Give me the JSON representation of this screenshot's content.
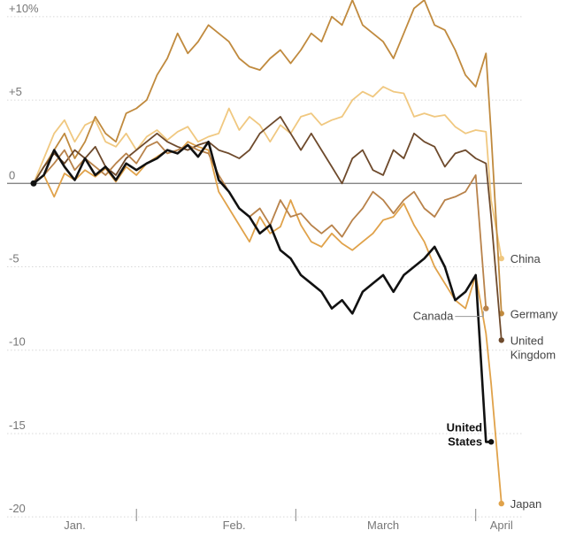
{
  "chart_data": {
    "type": "line",
    "title": "",
    "xlabel": "",
    "ylabel": "",
    "ylim": [
      -21,
      11
    ],
    "y_ticks": [
      {
        "value": 10,
        "label": "+10%"
      },
      {
        "value": 5,
        "label": "+5"
      },
      {
        "value": 0,
        "label": "0"
      },
      {
        "value": -5,
        "label": "-5"
      },
      {
        "value": -10,
        "label": "-10"
      },
      {
        "value": -15,
        "label": "-15"
      },
      {
        "value": -20,
        "label": "-20"
      }
    ],
    "x_labels": [
      {
        "label": "Jan.",
        "x": 8
      },
      {
        "label": "Feb.",
        "x": 39
      },
      {
        "label": "March",
        "x": 68
      },
      {
        "label": "April",
        "x": 91
      }
    ],
    "x_separators": [
      20,
      51,
      86
    ],
    "x_range": [
      0,
      95
    ],
    "grid": true,
    "legend": "labels at line ends",
    "series": [
      {
        "name": "Japan",
        "color": "#e0a24a",
        "emphasis": false,
        "x": [
          0,
          2,
          4,
          6,
          8,
          10,
          12,
          14,
          16,
          18,
          20,
          22,
          24,
          26,
          28,
          30,
          32,
          34,
          36,
          38,
          40,
          42,
          44,
          46,
          48,
          50,
          52,
          54,
          56,
          58,
          60,
          62,
          64,
          66,
          68,
          70,
          72,
          74,
          76,
          78,
          80,
          82,
          84,
          86,
          88,
          89,
          91
        ],
        "y": [
          0,
          0.5,
          -0.8,
          0.6,
          0.2,
          0.8,
          0.4,
          0.9,
          0.1,
          1.0,
          0.5,
          1.2,
          1.6,
          2.0,
          1.8,
          2.5,
          2.2,
          2.0,
          -0.5,
          -1.5,
          -2.5,
          -3.5,
          -2.0,
          -3.0,
          -2.6,
          -1.0,
          -2.5,
          -3.5,
          -3.8,
          -3.0,
          -3.6,
          -4.0,
          -3.5,
          -3.0,
          -2.2,
          -2.0,
          -1.2,
          -2.5,
          -3.5,
          -5.0,
          -6.0,
          -7.0,
          -7.5,
          -5.5,
          -9.0,
          -12.0,
          -19.2
        ]
      },
      {
        "name": "China",
        "color": "#f0c880",
        "emphasis": false,
        "x": [
          0,
          2,
          4,
          6,
          8,
          10,
          12,
          14,
          16,
          18,
          20,
          22,
          24,
          26,
          28,
          30,
          32,
          34,
          36,
          38,
          40,
          42,
          44,
          46,
          48,
          50,
          52,
          54,
          56,
          58,
          60,
          62,
          64,
          66,
          68,
          70,
          72,
          74,
          76,
          78,
          80,
          82,
          84,
          86,
          88,
          89,
          91
        ],
        "y": [
          0,
          1.5,
          3.0,
          3.8,
          2.5,
          3.5,
          3.8,
          2.5,
          2.2,
          3.0,
          2.0,
          2.8,
          3.2,
          2.6,
          3.1,
          3.4,
          2.5,
          2.8,
          3.0,
          4.5,
          3.2,
          4.0,
          3.5,
          2.5,
          3.5,
          3.0,
          4.0,
          4.2,
          3.5,
          3.8,
          4.0,
          5.0,
          5.5,
          5.2,
          5.8,
          5.5,
          5.4,
          4.0,
          4.2,
          4.0,
          4.1,
          3.4,
          3.0,
          3.2,
          3.1,
          -1.0,
          -4.5
        ]
      },
      {
        "name": "Germany",
        "color": "#c08a3e",
        "emphasis": false,
        "x": [
          0,
          2,
          4,
          6,
          8,
          10,
          12,
          14,
          16,
          18,
          20,
          22,
          24,
          26,
          28,
          30,
          32,
          34,
          36,
          38,
          40,
          42,
          44,
          46,
          48,
          50,
          52,
          54,
          56,
          58,
          60,
          62,
          64,
          66,
          68,
          70,
          72,
          74,
          76,
          78,
          80,
          82,
          84,
          86,
          88,
          89,
          91
        ],
        "y": [
          0,
          1.0,
          2.0,
          3.0,
          1.5,
          2.5,
          4.0,
          3.0,
          2.5,
          4.2,
          4.5,
          5.0,
          6.5,
          7.5,
          9.0,
          7.8,
          8.5,
          9.5,
          9.0,
          8.5,
          7.5,
          7.0,
          6.8,
          7.5,
          8.0,
          7.2,
          8.0,
          9.0,
          8.5,
          10.0,
          9.5,
          11.0,
          9.5,
          9.0,
          8.5,
          7.5,
          9.0,
          10.5,
          11.0,
          9.5,
          9.2,
          8.0,
          6.5,
          5.8,
          7.8,
          3.0,
          -7.8
        ]
      },
      {
        "name": "United Kingdom",
        "color": "#6e4a2c",
        "emphasis": false,
        "x": [
          0,
          2,
          4,
          6,
          8,
          10,
          12,
          14,
          16,
          18,
          20,
          22,
          24,
          26,
          28,
          30,
          32,
          34,
          36,
          38,
          40,
          42,
          44,
          46,
          48,
          50,
          52,
          54,
          56,
          58,
          60,
          62,
          64,
          66,
          68,
          70,
          72,
          74,
          76,
          78,
          80,
          82,
          84,
          86,
          88,
          89,
          91
        ],
        "y": [
          0,
          1.0,
          1.8,
          1.2,
          2.0,
          1.5,
          2.2,
          1.0,
          0.5,
          1.5,
          2.0,
          2.5,
          3.0,
          2.5,
          2.2,
          2.0,
          2.3,
          2.5,
          2.0,
          1.8,
          1.5,
          2.0,
          3.0,
          3.5,
          4.0,
          3.0,
          2.0,
          3.0,
          2.0,
          1.0,
          0.0,
          1.5,
          2.0,
          0.8,
          0.5,
          2.0,
          1.5,
          3.0,
          2.5,
          2.2,
          1.0,
          1.8,
          2.0,
          1.5,
          1.2,
          -2.0,
          -9.4
        ]
      },
      {
        "name": "Canada",
        "color": "#b8824a",
        "emphasis": false,
        "x": [
          0,
          2,
          4,
          6,
          8,
          10,
          12,
          14,
          16,
          18,
          20,
          22,
          24,
          26,
          28,
          30,
          32,
          34,
          36,
          38,
          40,
          42,
          44,
          46,
          48,
          50,
          52,
          54,
          56,
          58,
          60,
          62,
          64,
          66,
          68,
          70,
          72,
          74,
          76,
          78,
          80,
          82,
          84,
          86,
          88
        ],
        "y": [
          0,
          0.5,
          1.2,
          2.0,
          0.8,
          1.5,
          1.0,
          0.5,
          1.2,
          1.8,
          1.2,
          2.2,
          2.5,
          1.8,
          2.0,
          2.3,
          2.0,
          1.8,
          0.5,
          -0.5,
          -1.5,
          -2.0,
          -1.5,
          -2.5,
          -1.0,
          -2.0,
          -1.8,
          -2.5,
          -3.0,
          -2.5,
          -3.2,
          -2.2,
          -1.5,
          -0.5,
          -1.0,
          -1.8,
          -1.0,
          -0.5,
          -1.5,
          -2.0,
          -1.0,
          -0.8,
          -0.5,
          0.5,
          -7.5
        ]
      },
      {
        "name": "United States",
        "color": "#111111",
        "emphasis": true,
        "x": [
          0,
          2,
          4,
          6,
          8,
          10,
          12,
          14,
          16,
          18,
          20,
          22,
          24,
          26,
          28,
          30,
          32,
          34,
          36,
          38,
          40,
          42,
          44,
          46,
          48,
          50,
          52,
          54,
          56,
          58,
          60,
          62,
          64,
          66,
          68,
          70,
          72,
          74,
          76,
          78,
          80,
          82,
          84,
          86,
          88,
          89
        ],
        "y": [
          0,
          0.5,
          2.0,
          1.0,
          0.2,
          1.5,
          0.5,
          1.0,
          0.2,
          1.2,
          0.8,
          1.2,
          1.5,
          2.0,
          1.8,
          2.3,
          1.6,
          2.5,
          0.2,
          -0.5,
          -1.5,
          -2.0,
          -3.0,
          -2.5,
          -4.0,
          -4.5,
          -5.5,
          -6.0,
          -6.5,
          -7.5,
          -7.0,
          -7.8,
          -6.5,
          -6.0,
          -5.5,
          -6.5,
          -5.5,
          -5.0,
          -4.5,
          -3.8,
          -5.0,
          -7.0,
          -6.5,
          -5.5,
          -15.5,
          -15.5
        ]
      }
    ],
    "end_labels": [
      {
        "series": "China",
        "lines": [
          "China"
        ],
        "anchor": "start"
      },
      {
        "series": "Germany",
        "lines": [
          "Germany"
        ],
        "anchor": "start"
      },
      {
        "series": "United Kingdom",
        "lines": [
          "United",
          "Kingdom"
        ],
        "anchor": "start"
      },
      {
        "series": "Canada",
        "lines": [
          "Canada"
        ],
        "anchor": "end"
      },
      {
        "series": "United States",
        "lines": [
          "United",
          "States"
        ],
        "anchor": "end"
      },
      {
        "series": "Japan",
        "lines": [
          "Japan"
        ],
        "anchor": "start"
      }
    ]
  }
}
